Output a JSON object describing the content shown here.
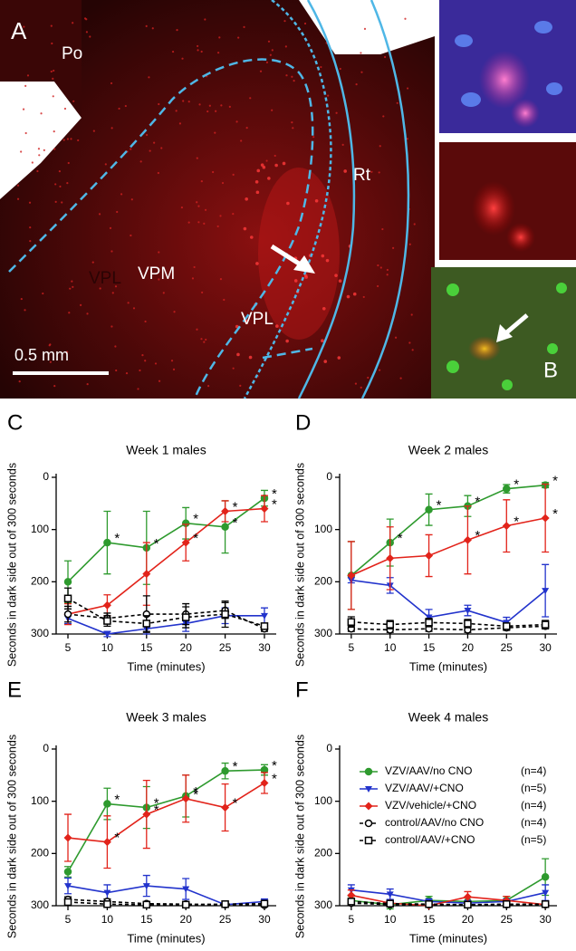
{
  "panel_a": {
    "letter": "A",
    "inset_letter": "B",
    "scale_bar": "0.5 mm",
    "regions": [
      "Po",
      "VPM",
      "VPL",
      "Rt",
      "VPL"
    ]
  },
  "chart_data": [
    {
      "type": "line",
      "letter": "C",
      "title": "Week 1 males",
      "xlabel": "Time (minutes)",
      "ylabel": "Seconds in dark side out of 300 seconds",
      "x": [
        5,
        10,
        15,
        20,
        25,
        30
      ],
      "xlim": [
        3.5,
        31.5
      ],
      "xticks": [
        5,
        10,
        15,
        20,
        25,
        30
      ],
      "ylim": [
        300,
        0
      ],
      "yticks": [
        0,
        100,
        200,
        300
      ],
      "legend": false,
      "series": [
        {
          "name": "VZV/AAV/no CNO",
          "n": "(n=4)",
          "color": "#2e9a2e",
          "marker": "circle",
          "dashed": false,
          "values": [
            200,
            125,
            135,
            88,
            95,
            40
          ],
          "errors": [
            40,
            60,
            70,
            30,
            50,
            15
          ],
          "stars": [
            null,
            "*",
            "*",
            "*",
            "*",
            "*"
          ]
        },
        {
          "name": "VZV/AAV/+CNO",
          "n": "(n=5)",
          "color": "#2233cc",
          "marker": "triangle",
          "dashed": false,
          "values": [
            270,
            300,
            290,
            280,
            265,
            265
          ],
          "errors": [
            10,
            5,
            10,
            15,
            15,
            15
          ],
          "stars": [
            null,
            null,
            null,
            null,
            null,
            null
          ]
        },
        {
          "name": "VZV/vehicle/+CNO",
          "n": "(n=4)",
          "color": "#e2231a",
          "marker": "diamond",
          "dashed": false,
          "values": [
            262,
            245,
            185,
            125,
            65,
            60
          ],
          "errors": [
            20,
            20,
            60,
            35,
            20,
            25
          ],
          "stars": [
            null,
            null,
            null,
            "*",
            "*",
            "*"
          ]
        },
        {
          "name": "control/AAV/no CNO",
          "n": "(n=4)",
          "color": "#000000",
          "marker": "open-circle",
          "dashed": true,
          "values": [
            262,
            270,
            262,
            262,
            255,
            290
          ],
          "errors": [
            15,
            10,
            35,
            20,
            15,
            5
          ],
          "stars": [
            null,
            null,
            null,
            null,
            null,
            null
          ]
        },
        {
          "name": "control/AAV/+CNO",
          "n": "(n=5)",
          "color": "#000000",
          "marker": "open-square",
          "dashed": true,
          "values": [
            232,
            275,
            280,
            268,
            262,
            285
          ],
          "errors": [
            20,
            10,
            15,
            20,
            25,
            5
          ],
          "stars": [
            null,
            null,
            null,
            null,
            null,
            null
          ]
        }
      ]
    },
    {
      "type": "line",
      "letter": "D",
      "title": "Week 2 males",
      "xlabel": "Time (minutes)",
      "ylabel": "Seconds in dark side out of 300 seconds",
      "x": [
        5,
        10,
        15,
        20,
        25,
        30
      ],
      "xlim": [
        3.5,
        31.5
      ],
      "xticks": [
        5,
        10,
        15,
        20,
        25,
        30
      ],
      "ylim": [
        300,
        0
      ],
      "yticks": [
        0,
        100,
        200,
        300
      ],
      "legend": false,
      "series": [
        {
          "name": "VZV/AAV/no CNO",
          "n": "(n=4)",
          "color": "#2e9a2e",
          "marker": "circle",
          "dashed": false,
          "values": [
            188,
            125,
            62,
            55,
            22,
            15
          ],
          "errors": [
            65,
            45,
            30,
            20,
            8,
            5
          ],
          "stars": [
            null,
            "*",
            "*",
            "*",
            "*",
            "*"
          ]
        },
        {
          "name": "VZV/AAV/+CNO",
          "n": "(n=5)",
          "color": "#2233cc",
          "marker": "triangle",
          "dashed": false,
          "values": [
            197,
            207,
            268,
            255,
            278,
            217
          ],
          "errors": [
            5,
            15,
            15,
            10,
            10,
            50
          ],
          "stars": [
            null,
            null,
            null,
            null,
            null,
            null
          ]
        },
        {
          "name": "VZV/vehicle/+CNO",
          "n": "(n=4)",
          "color": "#e2231a",
          "marker": "diamond",
          "dashed": false,
          "values": [
            188,
            155,
            150,
            120,
            93,
            78
          ],
          "errors": [
            65,
            60,
            40,
            65,
            50,
            65
          ],
          "stars": [
            null,
            null,
            null,
            "*",
            "*",
            "*"
          ]
        },
        {
          "name": "control/AAV/no CNO",
          "n": "(n=4)",
          "color": "#000000",
          "marker": "open-circle",
          "dashed": true,
          "values": [
            290,
            292,
            290,
            292,
            288,
            285
          ],
          "errors": [
            5,
            5,
            5,
            5,
            5,
            5
          ],
          "stars": [
            null,
            null,
            null,
            null,
            null,
            null
          ]
        },
        {
          "name": "control/AAV/+CNO",
          "n": "(n=5)",
          "color": "#000000",
          "marker": "open-square",
          "dashed": true,
          "values": [
            277,
            282,
            278,
            280,
            285,
            282
          ],
          "errors": [
            10,
            8,
            8,
            8,
            5,
            8
          ],
          "stars": [
            null,
            null,
            null,
            null,
            null,
            null
          ]
        }
      ]
    },
    {
      "type": "line",
      "letter": "E",
      "title": "Week 3 males",
      "xlabel": "Time (minutes)",
      "ylabel": "Seconds in dark side out of 300 seconds",
      "x": [
        5,
        10,
        15,
        20,
        25,
        30
      ],
      "xlim": [
        3.5,
        31.5
      ],
      "xticks": [
        5,
        10,
        15,
        20,
        25,
        30
      ],
      "ylim": [
        300,
        0
      ],
      "yticks": [
        0,
        100,
        200,
        300
      ],
      "legend": false,
      "series": [
        {
          "name": "VZV/AAV/no CNO",
          "n": "(n=4)",
          "color": "#2e9a2e",
          "marker": "circle",
          "dashed": false,
          "values": [
            235,
            105,
            112,
            90,
            42,
            40
          ],
          "errors": [
            10,
            30,
            40,
            40,
            15,
            10
          ],
          "stars": [
            null,
            "*",
            "*",
            "*",
            "*",
            "*"
          ]
        },
        {
          "name": "VZV/AAV/+CNO",
          "n": "(n=5)",
          "color": "#2233cc",
          "marker": "triangle",
          "dashed": false,
          "values": [
            262,
            275,
            262,
            268,
            298,
            292
          ],
          "errors": [
            15,
            15,
            20,
            20,
            5,
            5
          ],
          "stars": [
            null,
            null,
            null,
            null,
            null,
            null
          ]
        },
        {
          "name": "VZV/vehicle/+CNO",
          "n": "(n=4)",
          "color": "#e2231a",
          "marker": "diamond",
          "dashed": false,
          "values": [
            170,
            178,
            125,
            95,
            112,
            65
          ],
          "errors": [
            45,
            50,
            65,
            45,
            45,
            20
          ],
          "stars": [
            null,
            "*",
            "*",
            "*",
            "*",
            "*"
          ]
        },
        {
          "name": "control/AAV/no CNO",
          "n": "(n=4)",
          "color": "#000000",
          "marker": "open-circle",
          "dashed": true,
          "values": [
            288,
            292,
            296,
            297,
            298,
            299
          ],
          "errors": [
            5,
            5,
            3,
            3,
            2,
            1
          ],
          "stars": [
            null,
            null,
            null,
            null,
            null,
            null
          ]
        },
        {
          "name": "control/AAV/+CNO",
          "n": "(n=5)",
          "color": "#000000",
          "marker": "open-square",
          "dashed": true,
          "values": [
            293,
            297,
            298,
            298,
            297,
            296
          ],
          "errors": [
            5,
            3,
            2,
            2,
            3,
            3
          ],
          "stars": [
            null,
            null,
            null,
            null,
            null,
            null
          ]
        }
      ]
    },
    {
      "type": "line",
      "letter": "F",
      "title": "Week 4 males",
      "xlabel": "Time (minutes)",
      "ylabel": "Seconds in dark side out of 300 seconds",
      "x": [
        5,
        10,
        15,
        20,
        25,
        30
      ],
      "xlim": [
        3.5,
        31.5
      ],
      "xticks": [
        5,
        10,
        15,
        20,
        25,
        30
      ],
      "ylim": [
        300,
        0
      ],
      "yticks": [
        0,
        100,
        200,
        300
      ],
      "legend": true,
      "series": [
        {
          "name": "VZV/AAV/no CNO",
          "n": "(n=4)",
          "color": "#2e9a2e",
          "marker": "circle",
          "dashed": false,
          "values": [
            290,
            298,
            290,
            292,
            290,
            245
          ],
          "errors": [
            8,
            8,
            8,
            8,
            8,
            35
          ],
          "stars": [
            null,
            null,
            null,
            null,
            null,
            null
          ]
        },
        {
          "name": "VZV/AAV/+CNO",
          "n": "(n=5)",
          "color": "#2233cc",
          "marker": "triangle",
          "dashed": false,
          "values": [
            270,
            278,
            292,
            295,
            292,
            275
          ],
          "errors": [
            10,
            10,
            5,
            5,
            5,
            15
          ],
          "stars": [
            null,
            null,
            null,
            null,
            null,
            null
          ]
        },
        {
          "name": "VZV/vehicle/+CNO",
          "n": "(n=4)",
          "color": "#e2231a",
          "marker": "diamond",
          "dashed": false,
          "values": [
            280,
            295,
            300,
            283,
            290,
            298
          ],
          "errors": [
            10,
            5,
            2,
            10,
            8,
            2
          ],
          "stars": [
            null,
            null,
            null,
            null,
            null,
            null
          ]
        },
        {
          "name": "control/AAV/no CNO",
          "n": "(n=4)",
          "color": "#000000",
          "marker": "open-circle",
          "dashed": true,
          "values": [
            295,
            298,
            298,
            298,
            298,
            298
          ],
          "errors": [
            3,
            2,
            2,
            2,
            2,
            2
          ],
          "stars": [
            null,
            null,
            null,
            null,
            null,
            null
          ]
        },
        {
          "name": "control/AAV/+CNO",
          "n": "(n=5)",
          "color": "#000000",
          "marker": "open-square",
          "dashed": true,
          "values": [
            292,
            296,
            297,
            298,
            297,
            297
          ],
          "errors": [
            4,
            3,
            3,
            2,
            3,
            3
          ],
          "stars": [
            null,
            null,
            null,
            null,
            null,
            null
          ]
        }
      ]
    }
  ]
}
